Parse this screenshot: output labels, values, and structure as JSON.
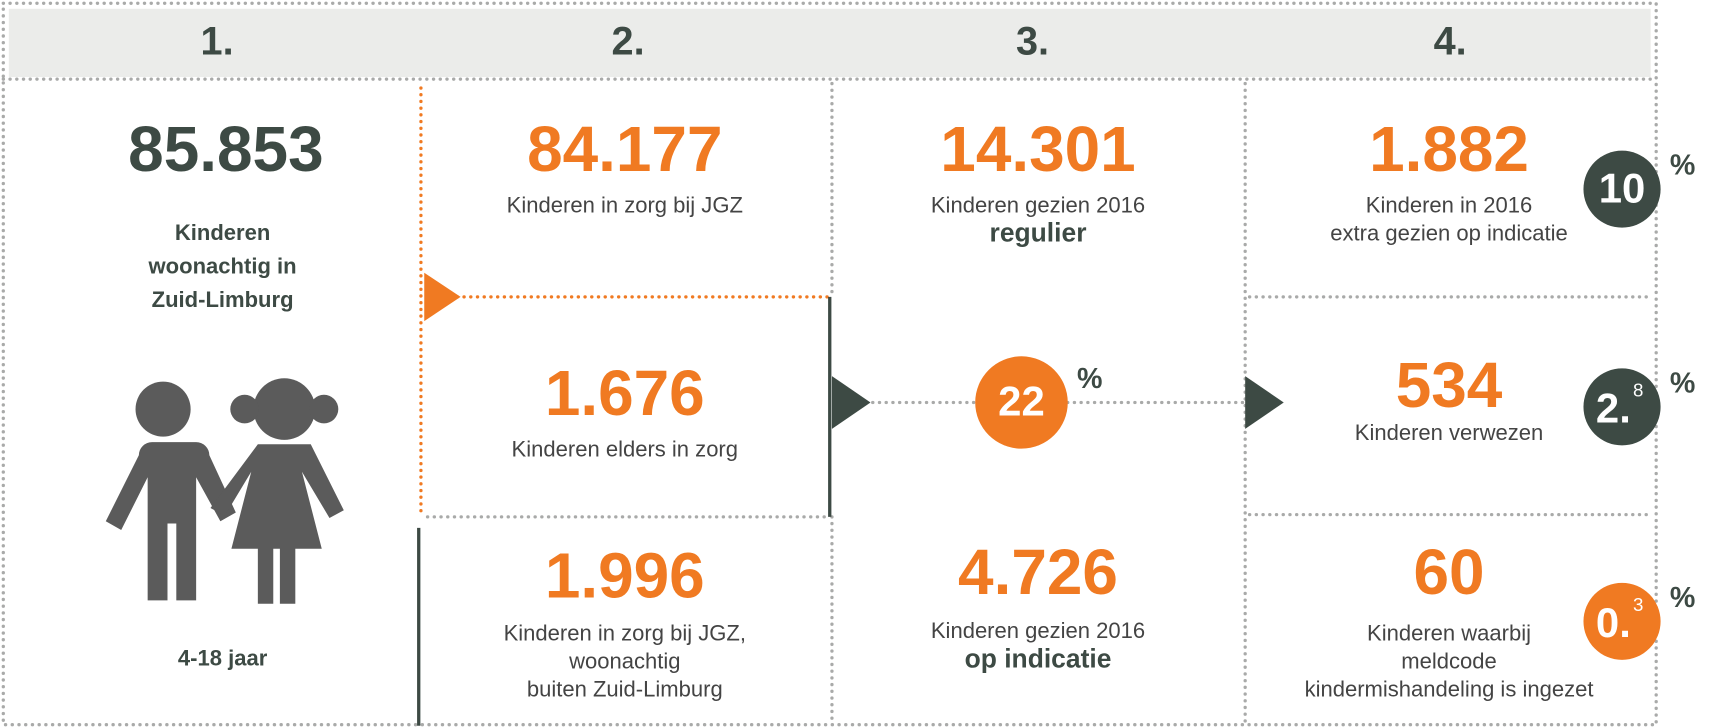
{
  "header": {
    "columns": [
      "1.",
      "2.",
      "3.",
      "4."
    ]
  },
  "column1": {
    "number": "85.853",
    "label": [
      "Kinderen",
      "woonachtig in",
      "Zuid-Limburg"
    ],
    "age": "4-18 jaar"
  },
  "column2": {
    "cells": [
      {
        "number": "84.177",
        "label": [
          "Kinderen in zorg bij JGZ"
        ]
      },
      {
        "number": "1.676",
        "label": [
          "Kinderen elders in zorg"
        ]
      },
      {
        "number": "1.996",
        "label": [
          "Kinderen in zorg bij JGZ,",
          "woonachtig",
          "buiten Zuid-Limburg"
        ]
      }
    ]
  },
  "column3": {
    "cells": [
      {
        "number": "14.301",
        "label": [
          "Kinderen gezien 2016"
        ],
        "emphasis": "regulier"
      },
      {
        "percent": {
          "value": "22",
          "unit": "%"
        }
      },
      {
        "number": "4.726",
        "label": [
          "Kinderen gezien 2016"
        ],
        "emphasis": "op indicatie"
      }
    ]
  },
  "column4": {
    "cells": [
      {
        "number": "1.882",
        "label": [
          "Kinderen in 2016",
          "extra gezien op indicatie"
        ],
        "percent": {
          "value": "10",
          "unit": "%"
        }
      },
      {
        "number": "534",
        "label": [
          "Kinderen verwezen"
        ],
        "percent": {
          "value": "2.",
          "sup": "8",
          "unit": "%"
        }
      },
      {
        "number": "60",
        "label": [
          "Kinderen waarbij",
          "meldcode",
          "kindermishandeling is ingezet"
        ],
        "percent": {
          "value": "0.",
          "sup": "3",
          "unit": "%"
        }
      }
    ]
  }
}
